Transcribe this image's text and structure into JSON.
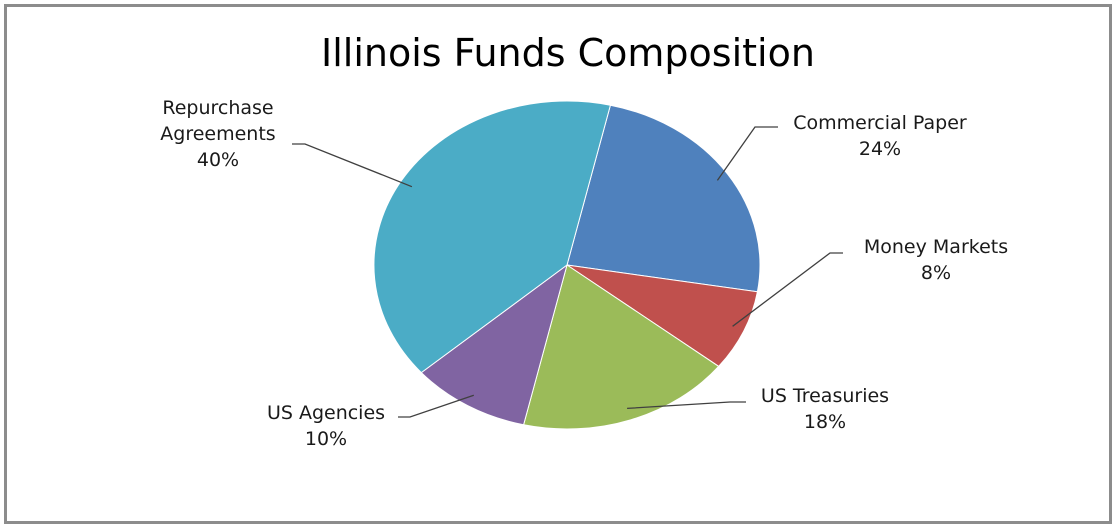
{
  "chart_data": {
    "type": "pie",
    "title": "Illinois Funds Composition",
    "slices": [
      {
        "label": "Commercial Paper",
        "value": 24,
        "value_label": "24%",
        "color": "#4f81bd"
      },
      {
        "label": "Money Markets",
        "value": 8,
        "value_label": "8%",
        "color": "#c0504d"
      },
      {
        "label": "US Treasuries",
        "value": 18,
        "value_label": "18%",
        "color": "#9bbb59"
      },
      {
        "label": "US Agencies",
        "value": 10,
        "value_label": "10%",
        "color": "#8064a2"
      },
      {
        "label": [
          "Repurchase",
          "Agreements"
        ],
        "value": 40,
        "value_label": "40%",
        "color": "#4bacc6"
      }
    ],
    "legend": "none",
    "data_labels": "outside with leader lines"
  }
}
